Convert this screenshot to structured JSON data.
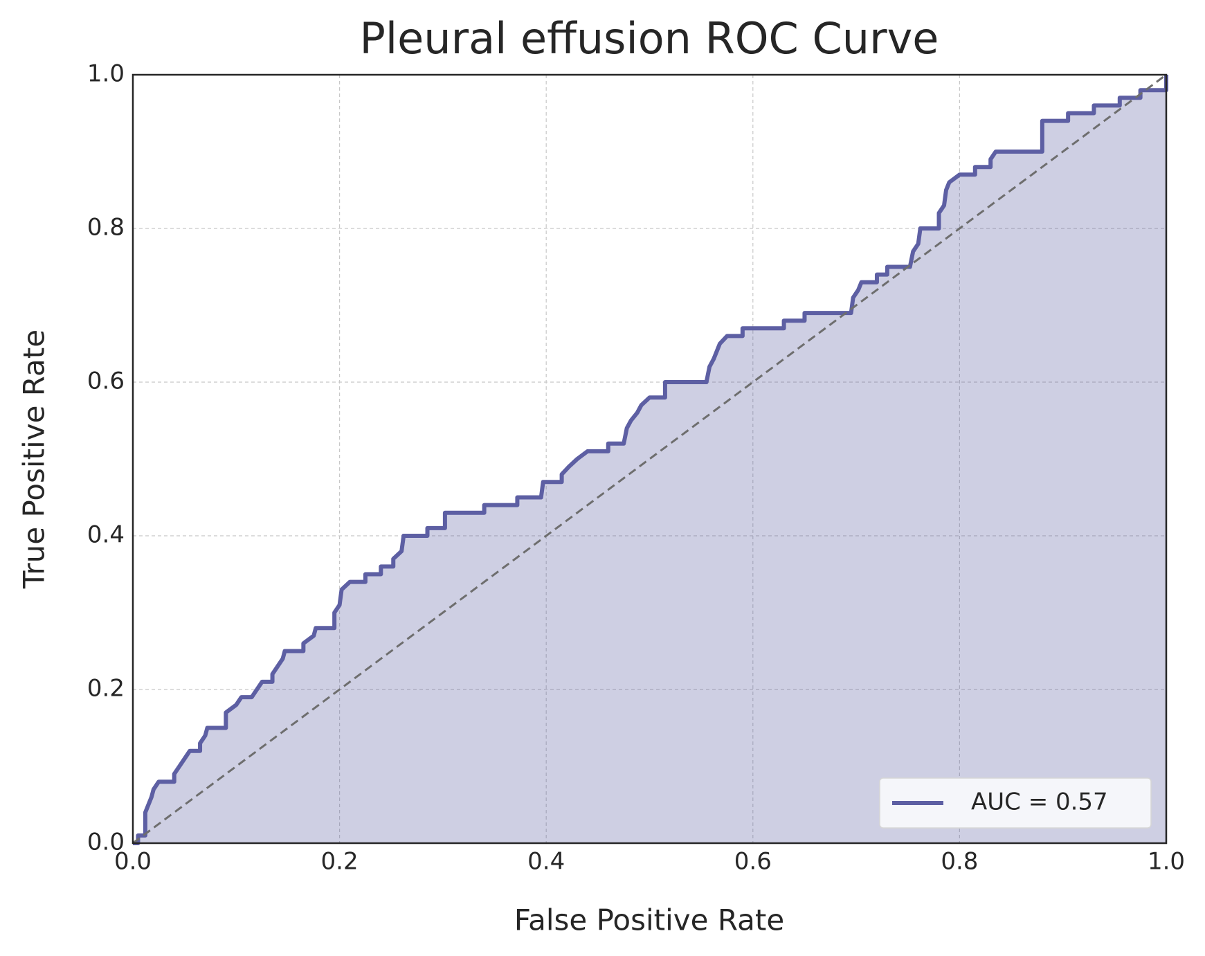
{
  "chart_data": {
    "type": "line",
    "title": "Pleural effusion ROC Curve",
    "xlabel": "False Positive Rate",
    "ylabel": "True Positive Rate",
    "x": [
      0,
      0.005,
      0.005,
      0.012,
      0.012,
      0.015,
      0.018,
      0.02,
      0.025,
      0.04,
      0.04,
      0.045,
      0.05,
      0.055,
      0.065,
      0.065,
      0.07,
      0.072,
      0.09,
      0.09,
      0.1,
      0.105,
      0.115,
      0.12,
      0.125,
      0.135,
      0.135,
      0.14,
      0.145,
      0.147,
      0.165,
      0.165,
      0.175,
      0.177,
      0.195,
      0.195,
      0.2,
      0.202,
      0.21,
      0.225,
      0.225,
      0.24,
      0.24,
      0.252,
      0.252,
      0.26,
      0.262,
      0.285,
      0.285,
      0.302,
      0.302,
      0.34,
      0.34,
      0.372,
      0.372,
      0.395,
      0.397,
      0.415,
      0.415,
      0.422,
      0.43,
      0.44,
      0.46,
      0.46,
      0.475,
      0.478,
      0.482,
      0.488,
      0.492,
      0.5,
      0.515,
      0.515,
      0.555,
      0.558,
      0.562,
      0.568,
      0.575,
      0.59,
      0.59,
      0.63,
      0.63,
      0.65,
      0.65,
      0.695,
      0.697,
      0.702,
      0.705,
      0.72,
      0.72,
      0.73,
      0.73,
      0.752,
      0.755,
      0.76,
      0.762,
      0.78,
      0.78,
      0.785,
      0.787,
      0.79,
      0.8,
      0.815,
      0.815,
      0.83,
      0.83,
      0.835,
      0.88,
      0.88,
      0.905,
      0.905,
      0.93,
      0.93,
      0.955,
      0.955,
      0.975,
      0.975,
      1,
      1
    ],
    "series": [
      {
        "name": "AUC = 0.57",
        "color": "#5d5fa3",
        "values": [
          0,
          0,
          0.01,
          0.01,
          0.04,
          0.05,
          0.06,
          0.07,
          0.08,
          0.08,
          0.09,
          0.1,
          0.11,
          0.12,
          0.12,
          0.13,
          0.14,
          0.15,
          0.15,
          0.17,
          0.18,
          0.19,
          0.19,
          0.2,
          0.21,
          0.21,
          0.22,
          0.23,
          0.24,
          0.25,
          0.25,
          0.26,
          0.27,
          0.28,
          0.28,
          0.3,
          0.31,
          0.33,
          0.34,
          0.34,
          0.35,
          0.35,
          0.36,
          0.36,
          0.37,
          0.38,
          0.4,
          0.4,
          0.41,
          0.41,
          0.43,
          0.43,
          0.44,
          0.44,
          0.45,
          0.45,
          0.47,
          0.47,
          0.48,
          0.49,
          0.5,
          0.51,
          0.51,
          0.52,
          0.52,
          0.54,
          0.55,
          0.56,
          0.57,
          0.58,
          0.58,
          0.6,
          0.6,
          0.62,
          0.63,
          0.65,
          0.66,
          0.66,
          0.67,
          0.67,
          0.68,
          0.68,
          0.69,
          0.69,
          0.71,
          0.72,
          0.73,
          0.73,
          0.74,
          0.74,
          0.75,
          0.75,
          0.77,
          0.78,
          0.8,
          0.8,
          0.82,
          0.83,
          0.85,
          0.86,
          0.87,
          0.87,
          0.88,
          0.88,
          0.89,
          0.9,
          0.9,
          0.94,
          0.94,
          0.95,
          0.95,
          0.96,
          0.96,
          0.97,
          0.97,
          0.98,
          0.98,
          1
        ]
      }
    ],
    "xlim": [
      0,
      1
    ],
    "ylim": [
      0,
      1
    ],
    "xticks": [
      {
        "value": 0,
        "label": "0.0"
      },
      0.2,
      0.4,
      0.6,
      0.8,
      {
        "value": 1,
        "label": "1.0"
      }
    ],
    "yticks": [
      {
        "value": 0,
        "label": "0.0"
      },
      0.2,
      0.4,
      0.6,
      0.8,
      {
        "value": 1,
        "label": "1.0"
      }
    ],
    "grid": true,
    "fill": true,
    "legend": "lower right"
  }
}
